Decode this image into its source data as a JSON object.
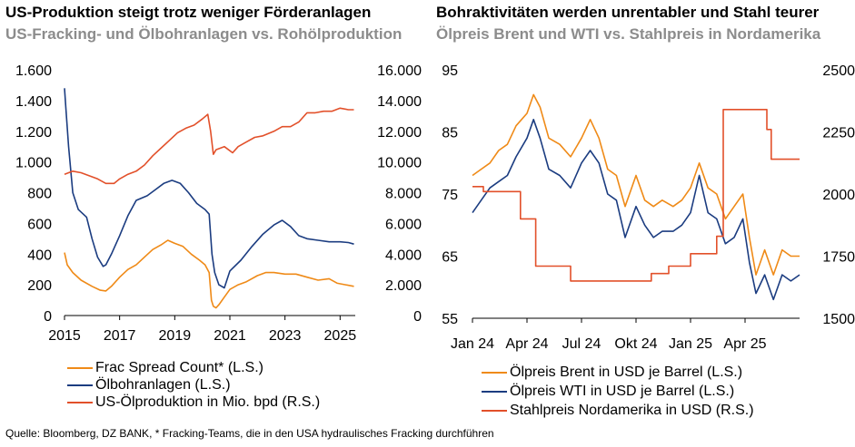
{
  "colors": {
    "orange": "#ef8a17",
    "navy": "#1b3c80",
    "red": "#e2502a",
    "grid": "#d0d0d0"
  },
  "left": {
    "title": "US-Produktion steigt trotz weniger Förderanlagen",
    "subtitle": "US-Fracking- und Ölbohranlagen vs. Rohölproduktion",
    "legend": [
      "Frac Spread Count* (L.S.)",
      "Ölbohranlagen (L.S.)",
      "US-Ölproduktion in Mio. bpd (R.S.)"
    ]
  },
  "right": {
    "title": "Bohraktivitäten werden unrentabler und Stahl teurer",
    "subtitle": "Ölpreis Brent und WTI vs. Stahlpreis in Nordamerika",
    "legend": [
      "Ölpreis Brent in USD je Barrel (L.S.)",
      "Ölpreis WTI in USD je Barrel (L.S.)",
      "Stahlpreis Nordamerika in USD (R.S.)"
    ]
  },
  "source": "Quelle: Bloomberg, DZ BANK, * Fracking-Teams, die in den USA hydraulisches Fracking durchführen",
  "chart_data": [
    {
      "type": "line",
      "title": "US-Produktion steigt trotz weniger Förderanlagen",
      "subtitle": "US-Fracking- und Ölbohranlagen vs. Rohölproduktion",
      "x_range": [
        2015.0,
        2025.55
      ],
      "x_ticks": [
        2015,
        2017,
        2019,
        2021,
        2023,
        2025
      ],
      "x_tick_labels": [
        "2015",
        "2017",
        "2019",
        "2021",
        "2023",
        "2025"
      ],
      "y_left": {
        "range": [
          0,
          1600
        ],
        "ticks": [
          0,
          200,
          400,
          600,
          800,
          1000,
          1200,
          1400,
          1600
        ],
        "tick_labels": [
          "0",
          "200",
          "400",
          "600",
          "800",
          "1.000",
          "1.200",
          "1.400",
          "1.600"
        ]
      },
      "y_right": {
        "range": [
          0,
          16000
        ],
        "ticks": [
          0,
          2000,
          4000,
          6000,
          8000,
          10000,
          12000,
          14000,
          16000
        ],
        "tick_labels": [
          "0",
          "2.000",
          "4.000",
          "6.000",
          "8.000",
          "10.000",
          "12.000",
          "14.000",
          "16.000"
        ]
      },
      "legend_position": "bottom",
      "grid": false,
      "series": [
        {
          "name": "Frac Spread Count* (L.S.)",
          "axis": "left",
          "color": "#ef8a17",
          "points": [
            [
              2015.0,
              410
            ],
            [
              2015.1,
              330
            ],
            [
              2015.3,
              280
            ],
            [
              2015.6,
              230
            ],
            [
              2016.0,
              190
            ],
            [
              2016.3,
              165
            ],
            [
              2016.5,
              160
            ],
            [
              2016.7,
              190
            ],
            [
              2017.0,
              250
            ],
            [
              2017.3,
              300
            ],
            [
              2017.6,
              330
            ],
            [
              2017.9,
              380
            ],
            [
              2018.2,
              430
            ],
            [
              2018.5,
              460
            ],
            [
              2018.75,
              490
            ],
            [
              2019.0,
              470
            ],
            [
              2019.3,
              450
            ],
            [
              2019.6,
              400
            ],
            [
              2019.9,
              360
            ],
            [
              2020.1,
              330
            ],
            [
              2020.25,
              280
            ],
            [
              2020.33,
              100
            ],
            [
              2020.4,
              60
            ],
            [
              2020.5,
              50
            ],
            [
              2020.6,
              70
            ],
            [
              2020.8,
              120
            ],
            [
              2021.0,
              170
            ],
            [
              2021.3,
              200
            ],
            [
              2021.6,
              220
            ],
            [
              2022.0,
              260
            ],
            [
              2022.3,
              280
            ],
            [
              2022.6,
              280
            ],
            [
              2023.0,
              270
            ],
            [
              2023.4,
              270
            ],
            [
              2023.8,
              250
            ],
            [
              2024.2,
              230
            ],
            [
              2024.6,
              240
            ],
            [
              2024.9,
              210
            ],
            [
              2025.2,
              200
            ],
            [
              2025.5,
              190
            ]
          ]
        },
        {
          "name": "Ölbohranlagen (L.S.)",
          "axis": "left",
          "color": "#1b3c80",
          "points": [
            [
              2015.0,
              1480
            ],
            [
              2015.05,
              1350
            ],
            [
              2015.15,
              1100
            ],
            [
              2015.3,
              800
            ],
            [
              2015.5,
              690
            ],
            [
              2015.8,
              640
            ],
            [
              2016.0,
              500
            ],
            [
              2016.2,
              380
            ],
            [
              2016.4,
              320
            ],
            [
              2016.5,
              330
            ],
            [
              2016.7,
              400
            ],
            [
              2017.0,
              520
            ],
            [
              2017.3,
              650
            ],
            [
              2017.6,
              750
            ],
            [
              2018.0,
              780
            ],
            [
              2018.3,
              820
            ],
            [
              2018.6,
              860
            ],
            [
              2018.9,
              880
            ],
            [
              2019.2,
              860
            ],
            [
              2019.5,
              800
            ],
            [
              2019.8,
              730
            ],
            [
              2020.1,
              690
            ],
            [
              2020.25,
              660
            ],
            [
              2020.35,
              400
            ],
            [
              2020.45,
              280
            ],
            [
              2020.6,
              200
            ],
            [
              2020.8,
              180
            ],
            [
              2021.0,
              290
            ],
            [
              2021.4,
              360
            ],
            [
              2021.8,
              450
            ],
            [
              2022.2,
              530
            ],
            [
              2022.6,
              590
            ],
            [
              2022.9,
              620
            ],
            [
              2023.2,
              580
            ],
            [
              2023.5,
              520
            ],
            [
              2023.8,
              500
            ],
            [
              2024.2,
              490
            ],
            [
              2024.6,
              480
            ],
            [
              2025.0,
              480
            ],
            [
              2025.3,
              475
            ],
            [
              2025.5,
              465
            ]
          ]
        },
        {
          "name": "US-Ölproduktion in Mio. bpd (R.S.)",
          "axis": "right",
          "color": "#e2502a",
          "points": [
            [
              2015.0,
              9200
            ],
            [
              2015.3,
              9400
            ],
            [
              2015.6,
              9300
            ],
            [
              2015.9,
              9100
            ],
            [
              2016.2,
              8900
            ],
            [
              2016.5,
              8600
            ],
            [
              2016.8,
              8600
            ],
            [
              2017.0,
              8900
            ],
            [
              2017.3,
              9200
            ],
            [
              2017.6,
              9400
            ],
            [
              2017.9,
              9800
            ],
            [
              2018.2,
              10400
            ],
            [
              2018.5,
              10900
            ],
            [
              2018.8,
              11400
            ],
            [
              2019.1,
              11900
            ],
            [
              2019.4,
              12200
            ],
            [
              2019.7,
              12400
            ],
            [
              2020.0,
              12800
            ],
            [
              2020.2,
              13100
            ],
            [
              2020.3,
              12000
            ],
            [
              2020.4,
              10500
            ],
            [
              2020.5,
              10800
            ],
            [
              2020.8,
              11000
            ],
            [
              2021.1,
              10600
            ],
            [
              2021.3,
              11000
            ],
            [
              2021.6,
              11300
            ],
            [
              2021.9,
              11600
            ],
            [
              2022.2,
              11700
            ],
            [
              2022.6,
              12000
            ],
            [
              2022.9,
              12300
            ],
            [
              2023.2,
              12300
            ],
            [
              2023.5,
              12600
            ],
            [
              2023.8,
              13200
            ],
            [
              2024.1,
              13200
            ],
            [
              2024.4,
              13300
            ],
            [
              2024.7,
              13300
            ],
            [
              2025.0,
              13500
            ],
            [
              2025.3,
              13400
            ],
            [
              2025.5,
              13400
            ]
          ]
        }
      ]
    },
    {
      "type": "line",
      "title": "Bohraktivitäten werden unrentabler und Stahl teurer",
      "subtitle": "Ölpreis Brent und WTI vs. Stahlpreis in Nordamerika",
      "x_range": [
        2024.0,
        2025.5
      ],
      "x_ticks": [
        2024.0,
        2024.25,
        2024.5,
        2024.75,
        2025.0,
        2025.25
      ],
      "x_tick_labels": [
        "Jan 24",
        "Apr 24",
        "Jul 24",
        "Okt 24",
        "Jan 25",
        "Apr 25"
      ],
      "y_left": {
        "range": [
          55,
          95
        ],
        "ticks": [
          55,
          65,
          75,
          85,
          95
        ],
        "tick_labels": [
          "55",
          "65",
          "75",
          "85",
          "95"
        ]
      },
      "y_right": {
        "range": [
          1500,
          2500
        ],
        "ticks": [
          1500,
          1750,
          2000,
          2250,
          2500
        ],
        "tick_labels": [
          "1500",
          "1750",
          "2000",
          "2250",
          "2500"
        ]
      },
      "legend_position": "bottom",
      "grid": false,
      "series": [
        {
          "name": "Ölpreis Brent in USD je Barrel (L.S.)",
          "axis": "left",
          "color": "#ef8a17",
          "points": [
            [
              2024.0,
              78
            ],
            [
              2024.04,
              79
            ],
            [
              2024.08,
              80
            ],
            [
              2024.12,
              82
            ],
            [
              2024.16,
              83
            ],
            [
              2024.2,
              86
            ],
            [
              2024.25,
              88
            ],
            [
              2024.28,
              91
            ],
            [
              2024.31,
              89
            ],
            [
              2024.35,
              84
            ],
            [
              2024.4,
              83
            ],
            [
              2024.45,
              81
            ],
            [
              2024.5,
              84
            ],
            [
              2024.54,
              87
            ],
            [
              2024.58,
              84
            ],
            [
              2024.62,
              79
            ],
            [
              2024.66,
              78
            ],
            [
              2024.7,
              73
            ],
            [
              2024.75,
              78
            ],
            [
              2024.79,
              74
            ],
            [
              2024.83,
              73
            ],
            [
              2024.87,
              74
            ],
            [
              2024.92,
              73
            ],
            [
              2024.96,
              74
            ],
            [
              2025.0,
              76
            ],
            [
              2025.04,
              80
            ],
            [
              2025.08,
              76
            ],
            [
              2025.12,
              75
            ],
            [
              2025.16,
              71
            ],
            [
              2025.2,
              73
            ],
            [
              2025.24,
              75
            ],
            [
              2025.27,
              68
            ],
            [
              2025.3,
              62
            ],
            [
              2025.34,
              66
            ],
            [
              2025.38,
              62
            ],
            [
              2025.42,
              66
            ],
            [
              2025.46,
              65
            ],
            [
              2025.5,
              65
            ]
          ]
        },
        {
          "name": "Ölpreis WTI in USD je Barrel (L.S.)",
          "axis": "left",
          "color": "#1b3c80",
          "points": [
            [
              2024.0,
              72
            ],
            [
              2024.04,
              74
            ],
            [
              2024.08,
              76
            ],
            [
              2024.12,
              77
            ],
            [
              2024.16,
              78
            ],
            [
              2024.2,
              81
            ],
            [
              2024.25,
              84
            ],
            [
              2024.28,
              87
            ],
            [
              2024.31,
              84
            ],
            [
              2024.35,
              79
            ],
            [
              2024.4,
              78
            ],
            [
              2024.45,
              76
            ],
            [
              2024.5,
              80
            ],
            [
              2024.54,
              82
            ],
            [
              2024.58,
              80
            ],
            [
              2024.62,
              75
            ],
            [
              2024.66,
              74
            ],
            [
              2024.7,
              68
            ],
            [
              2024.75,
              73
            ],
            [
              2024.79,
              70
            ],
            [
              2024.83,
              68
            ],
            [
              2024.87,
              69
            ],
            [
              2024.92,
              69
            ],
            [
              2024.96,
              70
            ],
            [
              2025.0,
              72
            ],
            [
              2025.04,
              78
            ],
            [
              2025.08,
              72
            ],
            [
              2025.12,
              71
            ],
            [
              2025.16,
              67
            ],
            [
              2025.2,
              68
            ],
            [
              2025.24,
              71
            ],
            [
              2025.27,
              64
            ],
            [
              2025.3,
              59
            ],
            [
              2025.34,
              62
            ],
            [
              2025.38,
              58
            ],
            [
              2025.42,
              62
            ],
            [
              2025.46,
              61
            ],
            [
              2025.5,
              62
            ]
          ]
        },
        {
          "name": "Stahlpreis Nordamerika in USD (R.S.)",
          "axis": "right",
          "color": "#e2502a",
          "points": [
            [
              2024.0,
              2030
            ],
            [
              2024.05,
              2030
            ],
            [
              2024.05,
              2010
            ],
            [
              2024.22,
              2010
            ],
            [
              2024.22,
              1900
            ],
            [
              2024.29,
              1900
            ],
            [
              2024.29,
              1710
            ],
            [
              2024.45,
              1710
            ],
            [
              2024.45,
              1650
            ],
            [
              2024.82,
              1650
            ],
            [
              2024.82,
              1680
            ],
            [
              2024.9,
              1680
            ],
            [
              2024.9,
              1710
            ],
            [
              2025.0,
              1710
            ],
            [
              2025.0,
              1760
            ],
            [
              2025.12,
              1760
            ],
            [
              2025.12,
              1830
            ],
            [
              2025.15,
              1830
            ],
            [
              2025.15,
              2340
            ],
            [
              2025.35,
              2340
            ],
            [
              2025.35,
              2260
            ],
            [
              2025.37,
              2260
            ],
            [
              2025.37,
              2140
            ],
            [
              2025.5,
              2140
            ]
          ]
        }
      ]
    }
  ]
}
